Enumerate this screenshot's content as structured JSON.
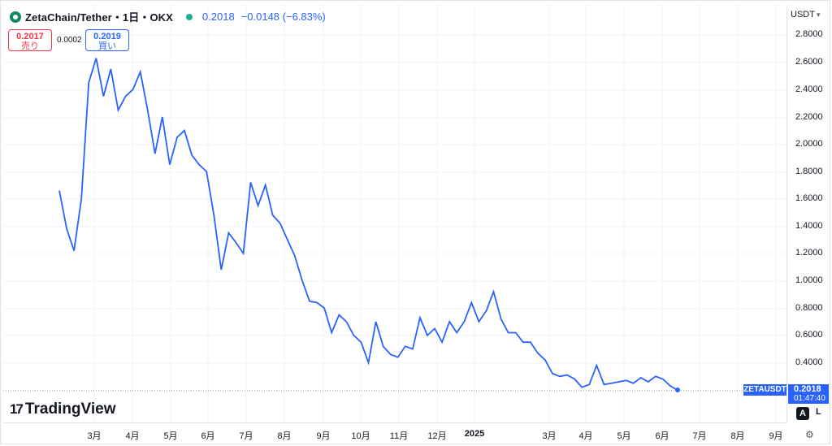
{
  "header": {
    "symbol_title": "ZetaChain/Tether・1日・OKX",
    "last_price": "0.2018",
    "change": "−0.0148 (−6.83%)",
    "status_dot_color": "#22ab94",
    "logo_icon": "zetachain-logo-icon"
  },
  "trade": {
    "sell_price": "0.2017",
    "sell_label": "売り",
    "spread": "0.0002",
    "buy_price": "0.2019",
    "buy_label": "買い"
  },
  "price_axis": {
    "currency_button": "USDT",
    "ticks": [
      "2.8000",
      "2.6000",
      "2.4000",
      "2.2000",
      "2.0000",
      "1.8000",
      "1.6000",
      "1.4000",
      "1.2000",
      "1.0000",
      "0.8000",
      "0.6000",
      "0.4000"
    ]
  },
  "last_price_label": {
    "symbol": "ZETAUSDT",
    "price": "0.2018",
    "countdown": "01:47:40"
  },
  "time_axis": {
    "labels": [
      "3月",
      "4月",
      "5月",
      "6月",
      "7月",
      "8月",
      "9月",
      "10月",
      "11月",
      "12月",
      "2025",
      "3月",
      "4月",
      "5月",
      "6月",
      "7月",
      "8月",
      "9月"
    ]
  },
  "brand": {
    "logo_text": "TradingView",
    "logo_mark": "17"
  },
  "controls": {
    "auto_scale": "A",
    "log_scale": "L",
    "settings_icon": "gear-icon"
  },
  "colors": {
    "line": "#2962ff",
    "sell": "#f23645",
    "buy": "#2962ff",
    "grid": "#f0f3fa"
  },
  "chart_data": {
    "type": "line",
    "title": "ZetaChain/Tether・1日・OKX",
    "ylim": [
      0.2,
      2.9
    ],
    "x_labels": [
      "3月",
      "4月",
      "5月",
      "6月",
      "7月",
      "8月",
      "9月",
      "10月",
      "11月",
      "12月",
      "2025",
      "3月",
      "4月",
      "5月",
      "6月",
      "7月",
      "8月",
      "9月"
    ],
    "series": [
      {
        "name": "ZETAUSDT",
        "values": [
          1.66,
          1.38,
          1.22,
          1.6,
          2.45,
          2.63,
          2.35,
          2.55,
          2.25,
          2.35,
          2.4,
          2.53,
          2.25,
          1.93,
          2.2,
          1.85,
          2.05,
          2.1,
          1.92,
          1.85,
          1.8,
          1.48,
          1.08,
          1.35,
          1.28,
          1.2,
          1.72,
          1.55,
          1.7,
          1.48,
          1.42,
          1.3,
          1.18,
          1.0,
          0.85,
          0.84,
          0.8,
          0.62,
          0.75,
          0.7,
          0.6,
          0.55,
          0.4,
          0.7,
          0.52,
          0.46,
          0.44,
          0.52,
          0.5,
          0.73,
          0.6,
          0.65,
          0.55,
          0.7,
          0.62,
          0.7,
          0.84,
          0.7,
          0.78,
          0.92,
          0.72,
          0.62,
          0.62,
          0.55,
          0.55,
          0.47,
          0.42,
          0.32,
          0.3,
          0.31,
          0.28,
          0.22,
          0.24,
          0.38,
          0.24,
          0.25,
          0.26,
          0.27,
          0.25,
          0.29,
          0.26,
          0.3,
          0.28,
          0.23,
          0.2
        ]
      }
    ]
  }
}
